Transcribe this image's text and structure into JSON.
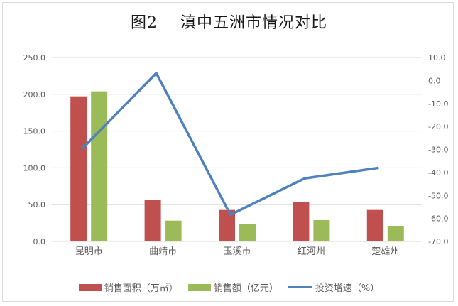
{
  "chart_data": {
    "type": "bar+line",
    "title": "图2    滇中五洲市情况对比",
    "categories": [
      "昆明市",
      "曲靖市",
      "玉溪市",
      "红河州",
      "楚雄州"
    ],
    "series": [
      {
        "name": "销售面积（万㎡）",
        "type": "bar",
        "axis": "left",
        "color": "#c0504d",
        "values": [
          197.2,
          56.0,
          42.8,
          54.0,
          42.8
        ]
      },
      {
        "name": "销售额（亿元）",
        "type": "bar",
        "axis": "left",
        "color": "#9bbb59",
        "values": [
          204.0,
          28.3,
          23.5,
          29.0,
          21.0
        ]
      },
      {
        "name": "投资增速（%）",
        "type": "line",
        "axis": "right",
        "color": "#4f81bd",
        "values": [
          -29.7,
          3.2,
          -58.4,
          -42.6,
          -38.0
        ]
      }
    ],
    "left_axis": {
      "ylim": [
        0,
        250
      ],
      "ticks": [
        "0.0",
        "50.0",
        "100.0",
        "150.0",
        "200.0",
        "250.0"
      ]
    },
    "right_axis": {
      "ylim": [
        -70,
        10
      ],
      "ticks": [
        "10.0",
        "0.0",
        "-10.0",
        "-20.0",
        "-30.0",
        "-40.0",
        "-50.0",
        "-60.0",
        "-70.0"
      ]
    },
    "xlabel": "",
    "ylabel": "",
    "grid": true,
    "legend_position": "bottom"
  },
  "title": "图2    滇中五洲市情况对比",
  "legend": [
    {
      "label": "销售面积（万㎡）",
      "color": "#c0504d",
      "kind": "bar"
    },
    {
      "label": "销售额（亿元）",
      "color": "#9bbb59",
      "kind": "bar"
    },
    {
      "label": "投资增速（%）",
      "color": "#4f81bd",
      "kind": "line"
    }
  ]
}
